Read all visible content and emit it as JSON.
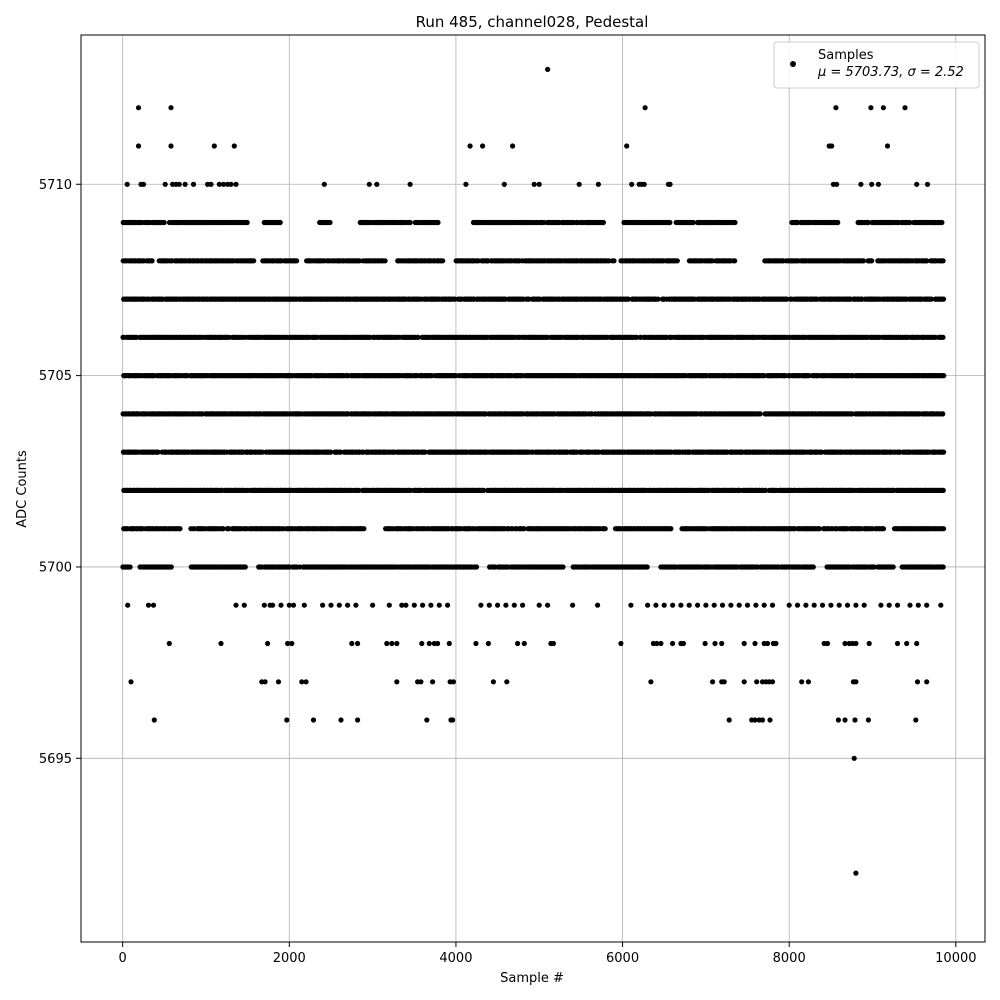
{
  "chart_data": {
    "type": "scatter",
    "title": "Run 485, channel028, Pedestal",
    "xlabel": "Sample #",
    "ylabel": "ADC Counts",
    "xlim": [
      -500,
      10350
    ],
    "ylim": [
      5690.2,
      5713.9
    ],
    "xticks": [
      0,
      2000,
      4000,
      6000,
      8000,
      10000
    ],
    "yticks": [
      5695,
      5700,
      5705,
      5710
    ],
    "grid": true,
    "legend": {
      "placement": "top-right",
      "entries": [
        "Samples",
        "μ = 5703.73, σ = 2.52"
      ]
    },
    "marker_color": "#000000",
    "n_samples": 10000,
    "x_range": [
      0,
      9850
    ],
    "series": [
      {
        "name": "Samples",
        "sparse_points": [
          [
            5100,
            5713
          ],
          [
            190,
            5712
          ],
          [
            580,
            5712
          ],
          [
            6270,
            5712
          ],
          [
            8560,
            5712
          ],
          [
            8980,
            5712
          ],
          [
            9130,
            5712
          ],
          [
            9390,
            5712
          ],
          [
            190,
            5711
          ],
          [
            580,
            5711
          ],
          [
            1100,
            5711
          ],
          [
            1340,
            5711
          ],
          [
            4170,
            5711
          ],
          [
            4320,
            5711
          ],
          [
            4680,
            5711
          ],
          [
            6050,
            5711
          ],
          [
            8480,
            5711
          ],
          [
            8510,
            5711
          ],
          [
            9180,
            5711
          ],
          [
            55,
            5710
          ],
          [
            220,
            5710
          ],
          [
            250,
            5710
          ],
          [
            510,
            5710
          ],
          [
            600,
            5710
          ],
          [
            640,
            5710
          ],
          [
            680,
            5710
          ],
          [
            750,
            5710
          ],
          [
            850,
            5710
          ],
          [
            1020,
            5710
          ],
          [
            1060,
            5710
          ],
          [
            1160,
            5710
          ],
          [
            1210,
            5710
          ],
          [
            1260,
            5710
          ],
          [
            1300,
            5710
          ],
          [
            1360,
            5710
          ],
          [
            2420,
            5710
          ],
          [
            2960,
            5710
          ],
          [
            3050,
            5710
          ],
          [
            3450,
            5710
          ],
          [
            4120,
            5710
          ],
          [
            4580,
            5710
          ],
          [
            4940,
            5710
          ],
          [
            5000,
            5710
          ],
          [
            5480,
            5710
          ],
          [
            5710,
            5710
          ],
          [
            6110,
            5710
          ],
          [
            6200,
            5710
          ],
          [
            6230,
            5710
          ],
          [
            6260,
            5710
          ],
          [
            6550,
            5710
          ],
          [
            6570,
            5710
          ],
          [
            8530,
            5710
          ],
          [
            8570,
            5710
          ],
          [
            8860,
            5710
          ],
          [
            8990,
            5710
          ],
          [
            9070,
            5710
          ],
          [
            9530,
            5710
          ],
          [
            9660,
            5710
          ],
          [
            60,
            5699
          ],
          [
            310,
            5699
          ],
          [
            370,
            5699
          ],
          [
            1360,
            5699
          ],
          [
            1460,
            5699
          ],
          [
            1700,
            5699
          ],
          [
            1770,
            5699
          ],
          [
            1800,
            5699
          ],
          [
            1900,
            5699
          ],
          [
            2000,
            5699
          ],
          [
            2050,
            5699
          ],
          [
            2180,
            5699
          ],
          [
            2400,
            5699
          ],
          [
            2500,
            5699
          ],
          [
            2600,
            5699
          ],
          [
            2700,
            5699
          ],
          [
            2800,
            5699
          ],
          [
            3000,
            5699
          ],
          [
            3200,
            5699
          ],
          [
            3350,
            5699
          ],
          [
            3400,
            5699
          ],
          [
            3500,
            5699
          ],
          [
            3600,
            5699
          ],
          [
            3700,
            5699
          ],
          [
            3800,
            5699
          ],
          [
            3900,
            5699
          ],
          [
            4300,
            5699
          ],
          [
            4400,
            5699
          ],
          [
            4500,
            5699
          ],
          [
            4600,
            5699
          ],
          [
            4700,
            5699
          ],
          [
            4800,
            5699
          ],
          [
            5000,
            5699
          ],
          [
            5100,
            5699
          ],
          [
            5400,
            5699
          ],
          [
            5700,
            5699
          ],
          [
            6100,
            5699
          ],
          [
            6300,
            5699
          ],
          [
            6400,
            5699
          ],
          [
            6500,
            5699
          ],
          [
            6600,
            5699
          ],
          [
            6700,
            5699
          ],
          [
            6800,
            5699
          ],
          [
            6900,
            5699
          ],
          [
            7000,
            5699
          ],
          [
            7100,
            5699
          ],
          [
            7200,
            5699
          ],
          [
            7300,
            5699
          ],
          [
            7400,
            5699
          ],
          [
            7500,
            5699
          ],
          [
            7600,
            5699
          ],
          [
            7700,
            5699
          ],
          [
            7800,
            5699
          ],
          [
            8000,
            5699
          ],
          [
            8100,
            5699
          ],
          [
            8200,
            5699
          ],
          [
            8300,
            5699
          ],
          [
            8400,
            5699
          ],
          [
            8500,
            5699
          ],
          [
            8600,
            5699
          ],
          [
            8700,
            5699
          ],
          [
            8800,
            5699
          ],
          [
            8900,
            5699
          ],
          [
            9100,
            5699
          ],
          [
            9200,
            5699
          ],
          [
            9300,
            5699
          ],
          [
            9450,
            5699
          ],
          [
            9550,
            5699
          ],
          [
            9650,
            5699
          ],
          [
            9820,
            5699
          ],
          [
            560,
            5698
          ],
          [
            1180,
            5698
          ],
          [
            1740,
            5698
          ],
          [
            1980,
            5698
          ],
          [
            2030,
            5698
          ],
          [
            2750,
            5698
          ],
          [
            2820,
            5698
          ],
          [
            3170,
            5698
          ],
          [
            3230,
            5698
          ],
          [
            3290,
            5698
          ],
          [
            3590,
            5698
          ],
          [
            3680,
            5698
          ],
          [
            3740,
            5698
          ],
          [
            3780,
            5698
          ],
          [
            3920,
            5698
          ],
          [
            4240,
            5698
          ],
          [
            4390,
            5698
          ],
          [
            4740,
            5698
          ],
          [
            4820,
            5698
          ],
          [
            5140,
            5698
          ],
          [
            5170,
            5698
          ],
          [
            5980,
            5698
          ],
          [
            6370,
            5698
          ],
          [
            6410,
            5698
          ],
          [
            6460,
            5698
          ],
          [
            6600,
            5698
          ],
          [
            6700,
            5698
          ],
          [
            6730,
            5698
          ],
          [
            6990,
            5698
          ],
          [
            7110,
            5698
          ],
          [
            7190,
            5698
          ],
          [
            7460,
            5698
          ],
          [
            7590,
            5698
          ],
          [
            7700,
            5698
          ],
          [
            7740,
            5698
          ],
          [
            7810,
            5698
          ],
          [
            7840,
            5698
          ],
          [
            8420,
            5698
          ],
          [
            8460,
            5698
          ],
          [
            8670,
            5698
          ],
          [
            8720,
            5698
          ],
          [
            8760,
            5698
          ],
          [
            8800,
            5698
          ],
          [
            8960,
            5698
          ],
          [
            9300,
            5698
          ],
          [
            9410,
            5698
          ],
          [
            9530,
            5698
          ],
          [
            100,
            5697
          ],
          [
            1670,
            5697
          ],
          [
            1710,
            5697
          ],
          [
            1870,
            5697
          ],
          [
            2150,
            5697
          ],
          [
            2200,
            5697
          ],
          [
            3290,
            5697
          ],
          [
            3540,
            5697
          ],
          [
            3580,
            5697
          ],
          [
            3720,
            5697
          ],
          [
            3930,
            5697
          ],
          [
            3970,
            5697
          ],
          [
            4450,
            5697
          ],
          [
            4610,
            5697
          ],
          [
            6340,
            5697
          ],
          [
            7080,
            5697
          ],
          [
            7190,
            5697
          ],
          [
            7220,
            5697
          ],
          [
            7460,
            5697
          ],
          [
            7610,
            5697
          ],
          [
            7680,
            5697
          ],
          [
            7720,
            5697
          ],
          [
            7760,
            5697
          ],
          [
            7800,
            5697
          ],
          [
            8150,
            5697
          ],
          [
            8230,
            5697
          ],
          [
            8770,
            5697
          ],
          [
            8800,
            5697
          ],
          [
            9540,
            5697
          ],
          [
            9650,
            5697
          ],
          [
            380,
            5696
          ],
          [
            1970,
            5696
          ],
          [
            2290,
            5696
          ],
          [
            2620,
            5696
          ],
          [
            2820,
            5696
          ],
          [
            3650,
            5696
          ],
          [
            3940,
            5696
          ],
          [
            3960,
            5696
          ],
          [
            7280,
            5696
          ],
          [
            7550,
            5696
          ],
          [
            7590,
            5696
          ],
          [
            7640,
            5696
          ],
          [
            7680,
            5696
          ],
          [
            7770,
            5696
          ],
          [
            8590,
            5696
          ],
          [
            8670,
            5696
          ],
          [
            8790,
            5696
          ],
          [
            8950,
            5696
          ],
          [
            9520,
            5696
          ],
          [
            8780,
            5695
          ],
          [
            8800,
            5692
          ]
        ]
      }
    ],
    "dense_levels": [
      5700,
      5701,
      5702,
      5703,
      5704,
      5705,
      5706,
      5707,
      5708,
      5709
    ],
    "dense_level_gaps": {
      "5708": [
        [
          360,
          430
        ],
        [
          1580,
          1680
        ],
        [
          2110,
          2200
        ],
        [
          3150,
          3300
        ],
        [
          3850,
          4000
        ],
        [
          5900,
          5960
        ],
        [
          6660,
          6800
        ],
        [
          7350,
          7700
        ],
        [
          9000,
          9060
        ]
      ],
      "5709": [
        [
          500,
          560
        ],
        [
          1500,
          1700
        ],
        [
          1900,
          2350
        ],
        [
          2500,
          2850
        ],
        [
          3800,
          4200
        ],
        [
          5800,
          6000
        ],
        [
          7350,
          8000
        ],
        [
          8600,
          8800
        ]
      ],
      "5700": [
        [
          100,
          200
        ],
        [
          600,
          800
        ],
        [
          1500,
          1620
        ],
        [
          4250,
          4400
        ],
        [
          5300,
          5400
        ],
        [
          6300,
          6450
        ],
        [
          8300,
          8420
        ],
        [
          9250,
          9350
        ]
      ],
      "5701": [
        [
          700,
          800
        ],
        [
          2900,
          3150
        ],
        [
          5800,
          5900
        ],
        [
          6600,
          6700
        ],
        [
          9150,
          9250
        ]
      ]
    }
  }
}
